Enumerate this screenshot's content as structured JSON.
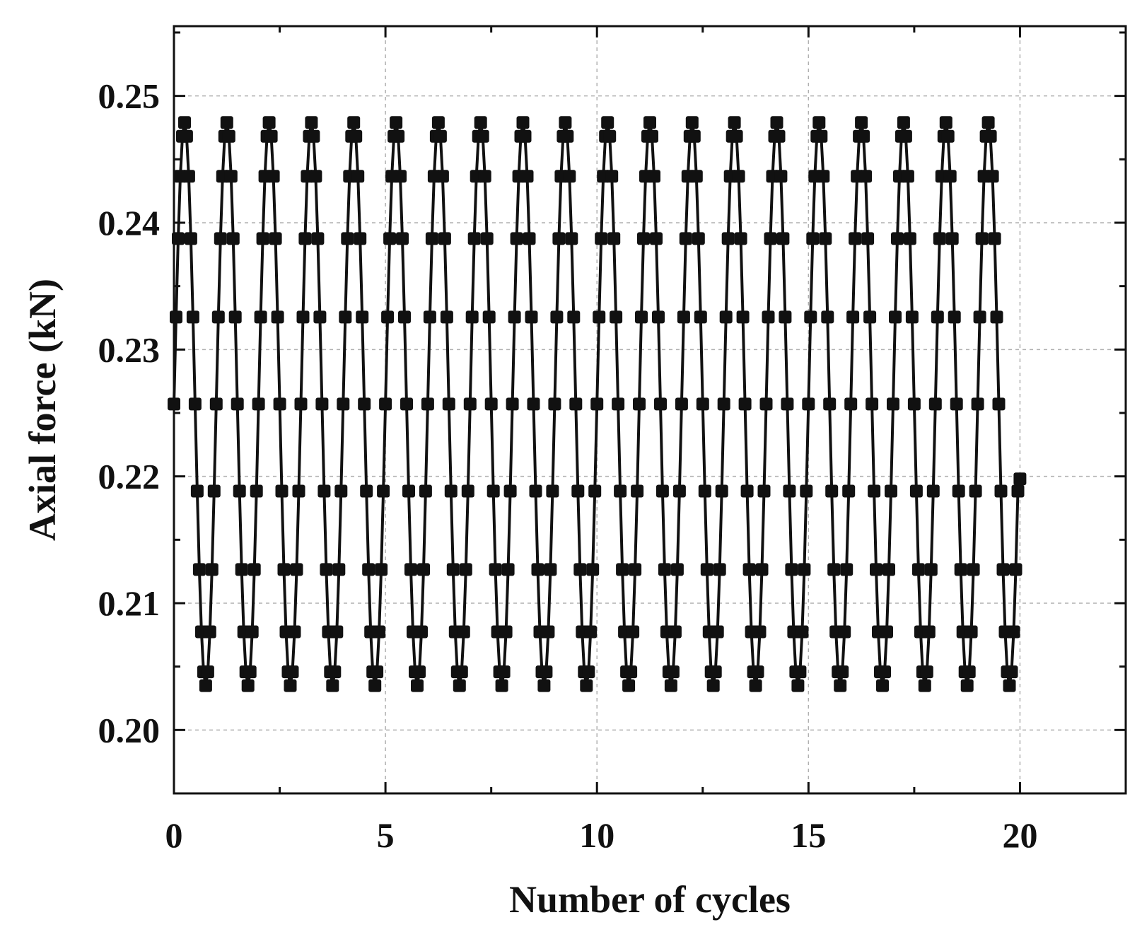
{
  "chart_data": {
    "type": "line",
    "title": "",
    "xlabel": "Number of cycles",
    "ylabel": "Axial force (kN)",
    "xlim": [
      0,
      22.5
    ],
    "ylim": [
      0.195,
      0.2555
    ],
    "xticks": [
      0,
      5,
      10,
      15,
      20
    ],
    "xtick_labels": [
      "0",
      "5",
      "10",
      "15",
      "20"
    ],
    "yticks": [
      0.2,
      0.21,
      0.22,
      0.23,
      0.24,
      0.25
    ],
    "ytick_labels": [
      "0.20",
      "0.21",
      "0.22",
      "0.23",
      "0.24",
      "0.25"
    ],
    "grid": true,
    "legend": "none",
    "marker": "square",
    "colors": {
      "series": "#111111",
      "grid": "#b0b0b0",
      "axes": "#111111"
    },
    "series": [
      {
        "name": "",
        "cycles": 20,
        "points_per_cycle": 20,
        "mean": 0.2257,
        "amplitude": 0.0222,
        "start_value": 0.2257,
        "end_value": 0.2198,
        "max": 0.2479,
        "min": 0.2035
      }
    ]
  }
}
